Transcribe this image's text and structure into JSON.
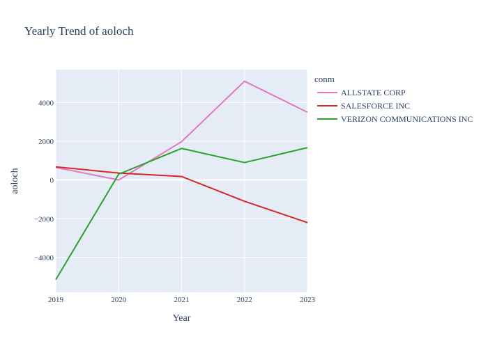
{
  "chart_data": {
    "type": "line",
    "title": "Yearly Trend of aoloch",
    "xlabel": "Year",
    "ylabel": "aoloch",
    "x": [
      2019,
      2020,
      2021,
      2022,
      2023
    ],
    "x_ticks": [
      "2019",
      "2020",
      "2021",
      "2022",
      "2023"
    ],
    "xlim": [
      2019,
      2023
    ],
    "ylim": [
      -5800,
      5700
    ],
    "y_ticks": [
      -4000,
      -2000,
      0,
      2000,
      4000
    ],
    "y_tick_labels": [
      "−4000",
      "−2000",
      "0",
      "2000",
      "4000"
    ],
    "grid": true,
    "legend_title": "conm",
    "legend_position": "right",
    "series": [
      {
        "name": "ALLSTATE CORP",
        "color": "#e377c2",
        "values": [
          650,
          0,
          1980,
          5100,
          3500
        ]
      },
      {
        "name": "SALESFORCE INC",
        "color": "#d62728",
        "values": [
          680,
          360,
          180,
          -1100,
          -2200
        ]
      },
      {
        "name": "VERIZON COMMUNICATIONS INC",
        "color": "#2ca02c",
        "values": [
          -5150,
          300,
          1630,
          900,
          1670
        ]
      }
    ]
  },
  "colors": {
    "plot_bg": "#e5ecf6",
    "grid": "#ffffff",
    "text": "#2a3f5f"
  }
}
